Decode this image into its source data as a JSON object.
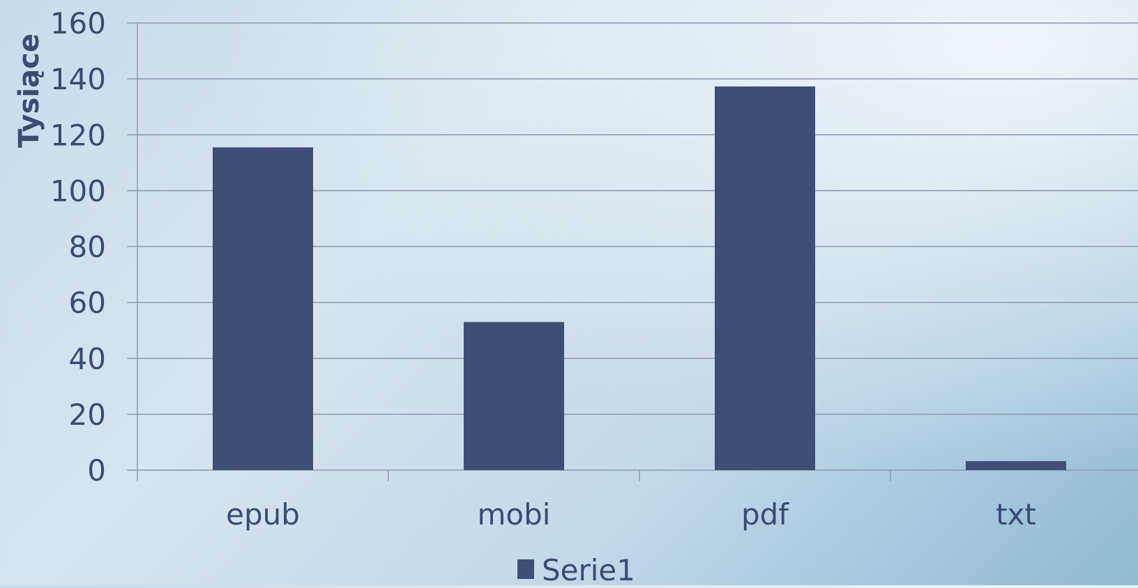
{
  "chart_data": {
    "type": "bar",
    "title": "",
    "xlabel": "",
    "ylabel": "Tysiące",
    "categories": [
      "epub",
      "mobi",
      "pdf",
      "txt"
    ],
    "series": [
      {
        "name": "Serie1",
        "values": [
          115.5,
          53,
          137.3,
          3.2
        ]
      }
    ],
    "ylim": [
      0,
      160
    ],
    "yticks": [
      0,
      20,
      40,
      60,
      80,
      100,
      120,
      140,
      160
    ],
    "ytick_labels": [
      "0",
      "20",
      "40",
      "60",
      "80",
      "100",
      "120",
      "140",
      "160"
    ],
    "grid": true,
    "legend": "bottom-center"
  },
  "colors": {
    "bar": "#404e77",
    "text": "#3c4a74",
    "grid": "#8f97ae",
    "axis": "#8f97ae"
  }
}
